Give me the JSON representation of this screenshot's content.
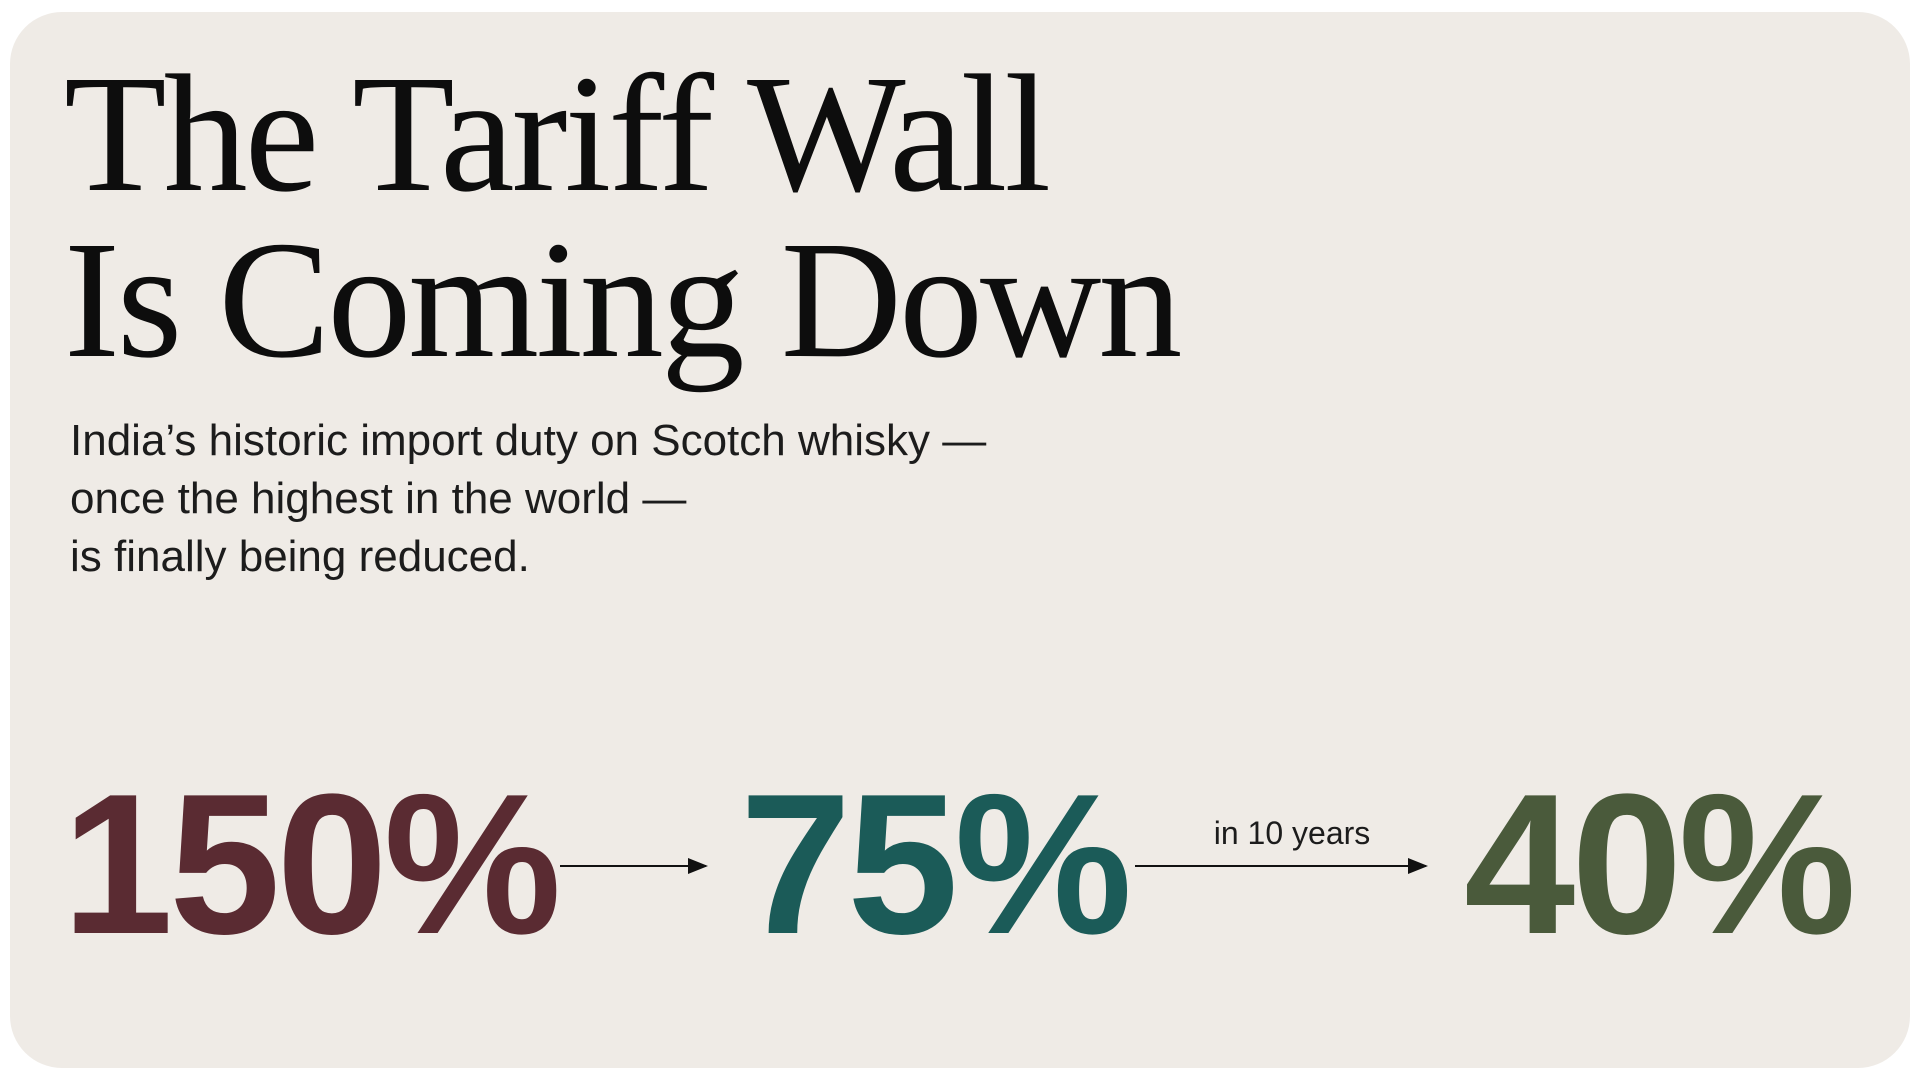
{
  "header": {
    "title_lines": [
      "The Tariff Wall",
      "Is Coming Down"
    ],
    "subtitle_lines": [
      "India’s historic import duty on Scotch whisky —",
      "once the highest in the world —",
      "is finally being reduced."
    ]
  },
  "stats": [
    {
      "label": "150%",
      "color": "#5a2b32"
    },
    {
      "label": "75%",
      "color": "#1b5b58"
    },
    {
      "label": "40%",
      "color": "#4a5a3b"
    }
  ],
  "arrow_note": "in 10 years"
}
